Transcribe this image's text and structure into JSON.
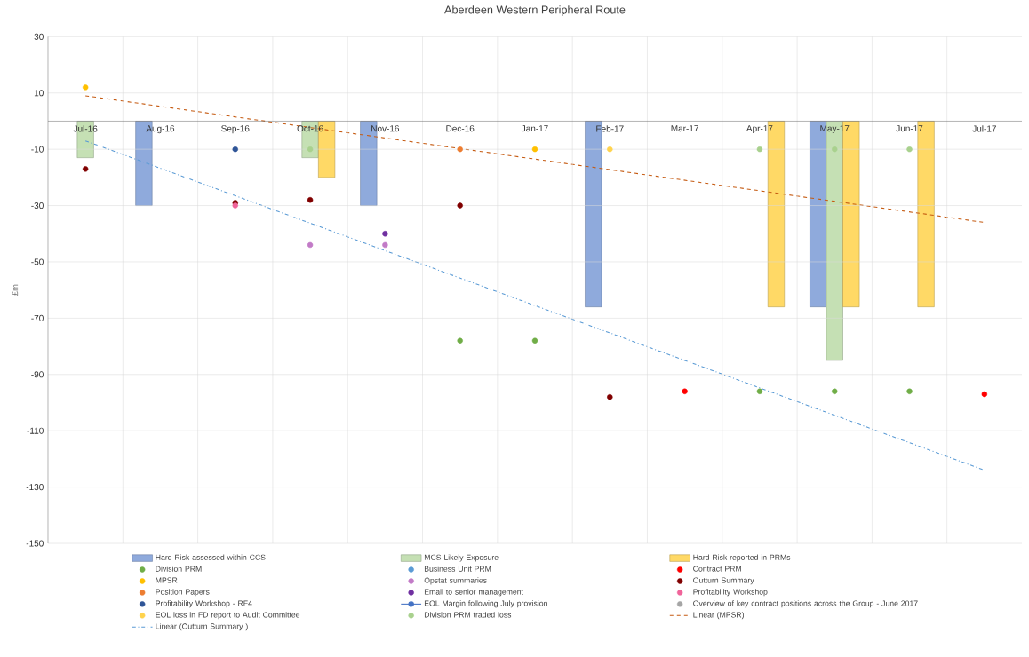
{
  "chart_data": {
    "type": "bar",
    "title": "Aberdeen Western Peripheral Route",
    "ylabel": "£m",
    "categories": [
      "Jul-16",
      "Aug-16",
      "Sep-16",
      "Oct-16",
      "Nov-16",
      "Dec-16",
      "Jan-17",
      "Feb-17",
      "Mar-17",
      "Apr-17",
      "May-17",
      "Jun-17",
      "Jul-17"
    ],
    "ylim": [
      -150,
      30
    ],
    "yticks": [
      -150,
      -130,
      -110,
      -90,
      -70,
      -50,
      -30,
      -10,
      10,
      30
    ],
    "grid": true,
    "legend": "bottom",
    "marker": "circle",
    "series": [
      {
        "name": "Hard Risk assessed within CCS",
        "color": "#8faadc",
        "values": [
          null,
          -30,
          null,
          null,
          -30,
          null,
          null,
          -66,
          null,
          null,
          -66,
          null,
          null
        ]
      },
      {
        "name": "MCS Likely Exposure",
        "color": "#c5e0b4",
        "values": [
          -13,
          null,
          null,
          -13,
          null,
          null,
          null,
          null,
          null,
          null,
          -85,
          null,
          null
        ]
      },
      {
        "name": "Hard Risk reported in PRMs",
        "color": "#ffd966",
        "values": [
          null,
          null,
          null,
          -20,
          null,
          null,
          null,
          null,
          null,
          -66,
          -66,
          -66,
          null
        ]
      },
      {
        "name": "Division PRM",
        "type": "scatter",
        "color": "#70ad47",
        "values": [
          null,
          null,
          null,
          null,
          null,
          -78,
          -78,
          null,
          null,
          -96,
          -96,
          -96,
          null
        ]
      },
      {
        "name": "Business Unit PRM",
        "type": "scatter",
        "color": "#5b9bd5",
        "values": [
          null,
          null,
          null,
          null,
          null,
          null,
          null,
          null,
          null,
          null,
          null,
          null,
          null
        ]
      },
      {
        "name": "Contract PRM",
        "type": "scatter",
        "color": "#ff0000",
        "values": [
          null,
          null,
          null,
          null,
          null,
          null,
          null,
          null,
          -96,
          null,
          null,
          null,
          -97
        ]
      },
      {
        "name": "MPSR",
        "type": "scatter",
        "color": "#ffc000",
        "values": [
          12,
          null,
          null,
          null,
          null,
          null,
          -10,
          null,
          null,
          null,
          null,
          null,
          null
        ]
      },
      {
        "name": "Opstat summaries",
        "type": "scatter",
        "color": "#c27bc7",
        "values": [
          null,
          null,
          null,
          -44,
          -44,
          null,
          null,
          null,
          null,
          null,
          null,
          null,
          null
        ]
      },
      {
        "name": "Outturn Summary",
        "type": "scatter",
        "color": "#800000",
        "values": [
          -17,
          null,
          -29,
          -28,
          null,
          -30,
          null,
          -98,
          null,
          null,
          null,
          null,
          null
        ]
      },
      {
        "name": "Position Papers",
        "type": "scatter",
        "color": "#ed7d31",
        "values": [
          null,
          null,
          null,
          null,
          null,
          -10,
          null,
          null,
          null,
          null,
          null,
          null,
          null
        ]
      },
      {
        "name": "Email to senior management",
        "type": "scatter",
        "color": "#7030a0",
        "values": [
          null,
          null,
          null,
          null,
          -40,
          null,
          null,
          null,
          null,
          null,
          null,
          null,
          null
        ]
      },
      {
        "name": "Profitability Workshop",
        "type": "scatter",
        "color": "#f0649a",
        "values": [
          null,
          null,
          -30,
          null,
          null,
          null,
          null,
          null,
          null,
          null,
          null,
          null,
          null
        ]
      },
      {
        "name": "Profitability Workshop - RF4",
        "type": "scatter",
        "color": "#2f5597",
        "values": [
          null,
          null,
          -10,
          null,
          null,
          null,
          null,
          null,
          null,
          null,
          null,
          null,
          null
        ]
      },
      {
        "name": "EOL Margin following July provision",
        "type": "line",
        "color": "#4472c4",
        "values": [
          null,
          null,
          null,
          null,
          null,
          null,
          null,
          null,
          null,
          null,
          null,
          null,
          null
        ]
      },
      {
        "name": "Overview of key contract positions across the Group - June 2017",
        "type": "scatter",
        "color": "#a5a5a5",
        "values": [
          null,
          null,
          null,
          null,
          null,
          null,
          null,
          null,
          null,
          null,
          null,
          null,
          null
        ]
      },
      {
        "name": "EOL loss in FD report to Audit Committee",
        "type": "scatter",
        "color": "#ffd34d",
        "values": [
          null,
          null,
          null,
          null,
          null,
          null,
          null,
          -10,
          null,
          null,
          null,
          null,
          null
        ]
      },
      {
        "name": "Division PRM traded loss",
        "type": "scatter",
        "color": "#a9d18e",
        "values": [
          null,
          null,
          null,
          -10,
          null,
          null,
          null,
          null,
          null,
          -10,
          -10,
          -10,
          null
        ]
      },
      {
        "name": "Linear (MPSR)",
        "type": "line",
        "color": "#c55a11",
        "line_style": "dashed",
        "marker": "none",
        "values": [
          9,
          null,
          null,
          null,
          null,
          null,
          null,
          null,
          null,
          null,
          null,
          null,
          -36
        ]
      },
      {
        "name": "Linear (Outturn Summary )",
        "type": "line",
        "color": "#5b9bd5",
        "line_style": "dashdot",
        "marker": "none",
        "values": [
          -7,
          null,
          null,
          null,
          null,
          null,
          null,
          null,
          null,
          null,
          null,
          null,
          -124
        ]
      }
    ]
  }
}
